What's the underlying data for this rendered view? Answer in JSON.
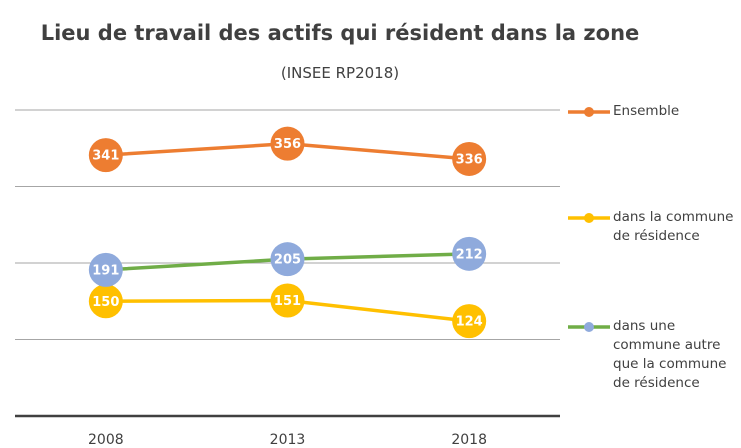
{
  "chart_data": {
    "type": "line",
    "title": "Lieu de travail des actifs qui résident dans la zone",
    "subtitle": "(INSEE RP2018)",
    "categories": [
      "2008",
      "2013",
      "2018"
    ],
    "series": [
      {
        "name": "Ensemble",
        "color": "#ED7D31",
        "marker_color": "#ED7D31",
        "values": [
          341,
          356,
          336
        ]
      },
      {
        "name": "dans la commune de résidence",
        "color": "#FFC000",
        "marker_color": "#FFC000",
        "values": [
          150,
          151,
          124
        ]
      },
      {
        "name": "dans une commune autre que la commune de résidence",
        "color": "#70AD47",
        "marker_color": "#8FAADC",
        "values": [
          191,
          205,
          212
        ]
      }
    ],
    "ylim": [
      0,
      400
    ],
    "yticks": [
      0,
      100,
      200,
      300,
      400
    ],
    "grid": true,
    "data_labels": true,
    "legend": "right"
  }
}
